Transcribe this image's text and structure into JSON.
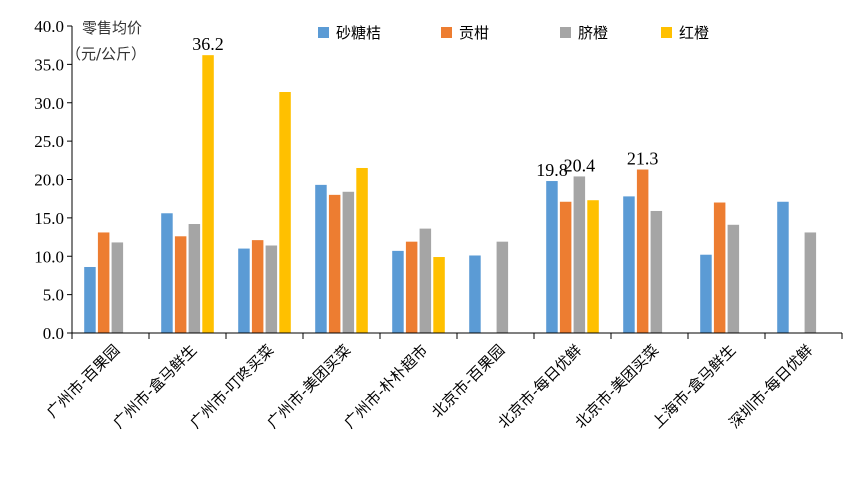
{
  "chart_data": {
    "type": "bar",
    "ylabel_line1": "零售均价",
    "ylabel_line2": "（元/公斤）",
    "ylim": [
      0,
      40
    ],
    "yticks": [
      "0.0",
      "5.0",
      "10.0",
      "15.0",
      "20.0",
      "25.0",
      "30.0",
      "35.0",
      "40.0"
    ],
    "grid": false,
    "legend_position": "top",
    "categories": [
      "广州市-百果园",
      "广州市-盒马鲜生",
      "广州市-叮咚买菜",
      "广州市-美团买菜",
      "广州市-朴朴超市",
      "北京市-百果园",
      "北京市-每日优鲜",
      "北京市-美团买菜",
      "上海市-盒马鲜生",
      "深圳市-每日优鲜"
    ],
    "series": [
      {
        "name": "砂糖桔",
        "color": "#5B9BD5",
        "values": [
          8.6,
          15.6,
          11.0,
          19.3,
          10.7,
          10.1,
          19.8,
          17.8,
          10.2,
          17.1
        ]
      },
      {
        "name": "贡柑",
        "color": "#ED7D31",
        "values": [
          13.1,
          12.6,
          12.1,
          18.0,
          11.9,
          null,
          17.1,
          21.3,
          17.0,
          null
        ]
      },
      {
        "name": "脐橙",
        "color": "#A5A5A5",
        "values": [
          11.8,
          14.2,
          11.4,
          18.4,
          13.6,
          11.9,
          20.4,
          15.9,
          14.1,
          13.1
        ]
      },
      {
        "name": "红橙",
        "color": "#FFC000",
        "values": [
          null,
          36.2,
          31.4,
          21.5,
          9.9,
          null,
          17.3,
          null,
          null,
          null
        ]
      }
    ],
    "data_labels": [
      {
        "category_index": 1,
        "series_index": 3,
        "text": "36.2"
      },
      {
        "category_index": 6,
        "series_index": 0,
        "text": "19.8"
      },
      {
        "category_index": 6,
        "series_index": 2,
        "text": "20.4"
      },
      {
        "category_index": 7,
        "series_index": 1,
        "text": "21.3"
      }
    ]
  }
}
